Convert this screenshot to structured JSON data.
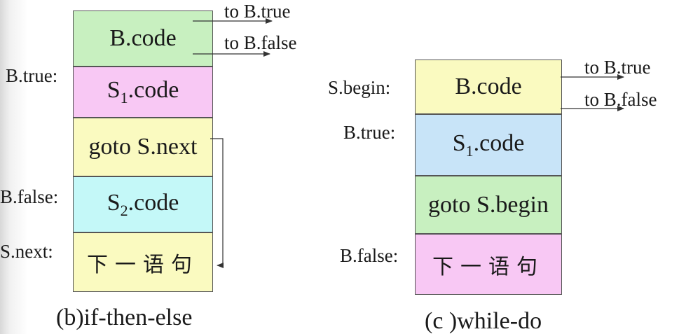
{
  "colors": {
    "green": "#c8f0c0",
    "pink": "#f8c8f4",
    "yellow": "#fafac0",
    "cyan": "#c4f8f8",
    "blue": "#c8e4f8"
  },
  "left": {
    "caption": "(b)if-then-else",
    "boxes": {
      "b_code": "B.code",
      "s1_code_prefix": "S",
      "s1_code_sub": "1",
      "s1_code_suffix": ".code",
      "goto": "goto S.next",
      "s2_code_prefix": "S",
      "s2_code_sub": "2",
      "s2_code_suffix": ".code",
      "next_stmt": "下一语句"
    },
    "labels": {
      "b_true": "B.true:",
      "b_false": "B.false:",
      "s_next": "S.next:"
    },
    "targets": {
      "to_true": "to B.true",
      "to_false": "to B.false"
    }
  },
  "right": {
    "caption": "(c )while-do",
    "boxes": {
      "b_code": "B.code",
      "s1_code_prefix": "S",
      "s1_code_sub": "1",
      "s1_code_suffix": ".code",
      "goto": "goto S.begin",
      "next_stmt": "下一语句"
    },
    "labels": {
      "s_begin": "S.begin:",
      "b_true": "B.true:",
      "b_false": "B.false:"
    },
    "targets": {
      "to_true": "to B.true",
      "to_false": "to B.false"
    }
  }
}
